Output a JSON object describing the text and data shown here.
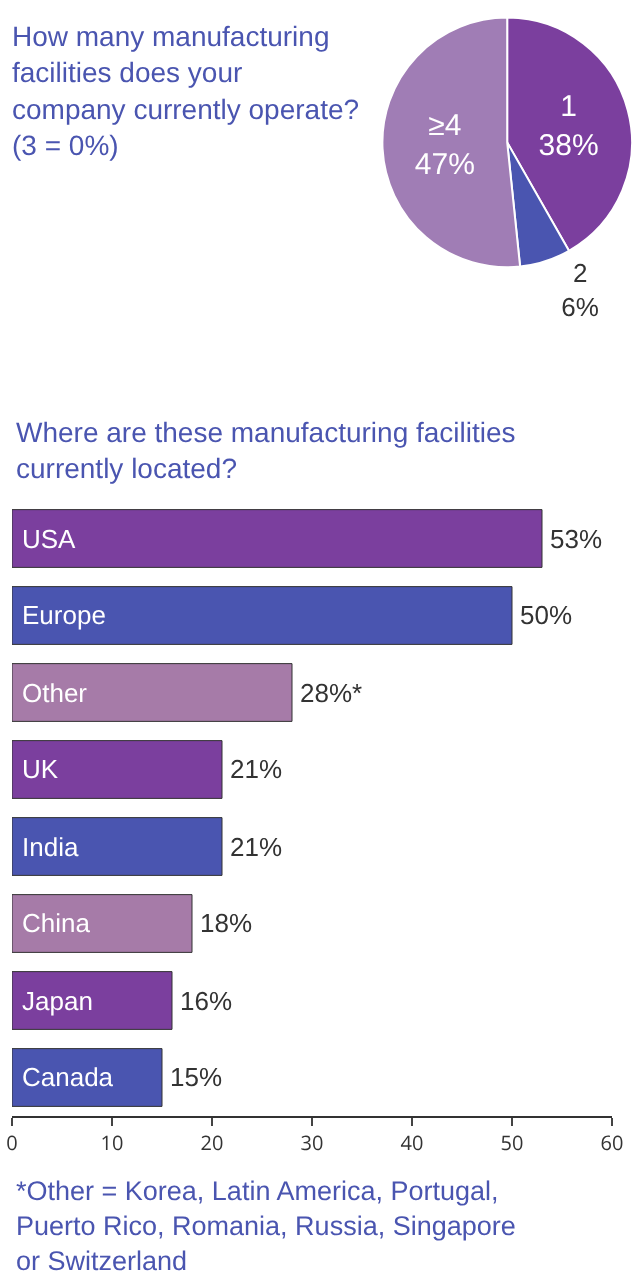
{
  "chart_data": [
    {
      "type": "pie",
      "title": "How many manufacturing facilities does your company currently operate? (3 = 0%)",
      "categories": [
        "1",
        "2",
        "≥4"
      ],
      "values": [
        38,
        6,
        47
      ],
      "value_labels": [
        "38%",
        "6%",
        "47%"
      ],
      "colors": [
        "#7b3f9e",
        "#4a55b0",
        "#a07db5"
      ]
    },
    {
      "type": "bar",
      "orientation": "horizontal",
      "title": "Where are these manufacturing facilities currently located?",
      "categories": [
        "USA",
        "Europe",
        "Other",
        "UK",
        "India",
        "China",
        "Japan",
        "Canada"
      ],
      "values": [
        53,
        50,
        28,
        21,
        21,
        18,
        16,
        15
      ],
      "value_labels": [
        "53%",
        "50%",
        "28%*",
        "21%",
        "21%",
        "18%",
        "16%",
        "15%"
      ],
      "colors": [
        "#7b3f9e",
        "#4a55b0",
        "#a67ba8",
        "#7b3f9e",
        "#4a55b0",
        "#a67ba8",
        "#7b3f9e",
        "#4a55b0"
      ],
      "xlim": [
        0,
        60
      ],
      "xticks": [
        0,
        10,
        20,
        30,
        40,
        50,
        60
      ],
      "tick_labels": "x",
      "grid": false,
      "annotations": [
        "*Other = Korea, Latin America, Portugal, Puerto Rico, Romania, Russia, Singapore or Switzerland"
      ]
    }
  ]
}
